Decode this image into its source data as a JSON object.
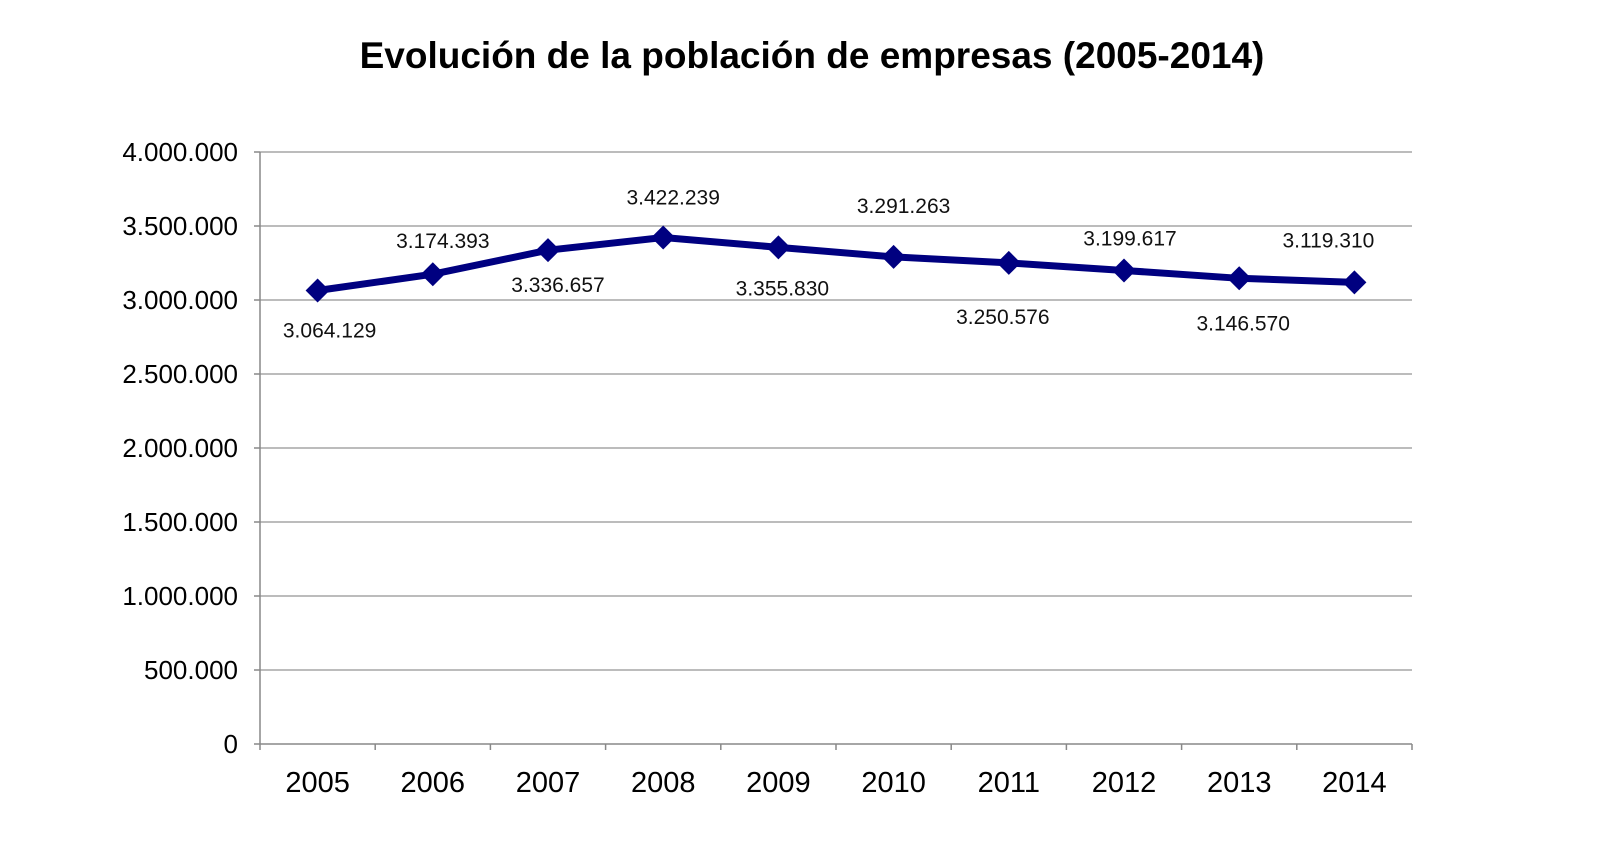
{
  "chart_data": {
    "type": "line",
    "title": "Evolución de la población de empresas (2005-2014)",
    "xlabel": "",
    "ylabel": "",
    "categories": [
      "2005",
      "2006",
      "2007",
      "2008",
      "2009",
      "2010",
      "2011",
      "2012",
      "2013",
      "2014"
    ],
    "series": [
      {
        "values": [
          3064129,
          3174393,
          3336657,
          3422239,
          3355830,
          3291263,
          3250576,
          3199617,
          3146570,
          3119310
        ],
        "data_labels": [
          "3.064.129",
          "3.174.393",
          "3.336.657",
          "3.422.239",
          "3.355.830",
          "3.291.263",
          "3.250.576",
          "3.199.617",
          "3.146.570",
          "3.119.310"
        ],
        "color": "#000080",
        "marker": "diamond"
      }
    ],
    "ylim": [
      0,
      4000000
    ],
    "yticks": [
      0,
      500000,
      1000000,
      1500000,
      2000000,
      2500000,
      3000000,
      3500000,
      4000000
    ],
    "ytick_labels": [
      "0",
      "500.000",
      "1.000.000",
      "1.500.000",
      "2.000.000",
      "2.500.000",
      "3.000.000",
      "3.500.000",
      "4.000.000"
    ],
    "grid": true,
    "legend": "none"
  }
}
